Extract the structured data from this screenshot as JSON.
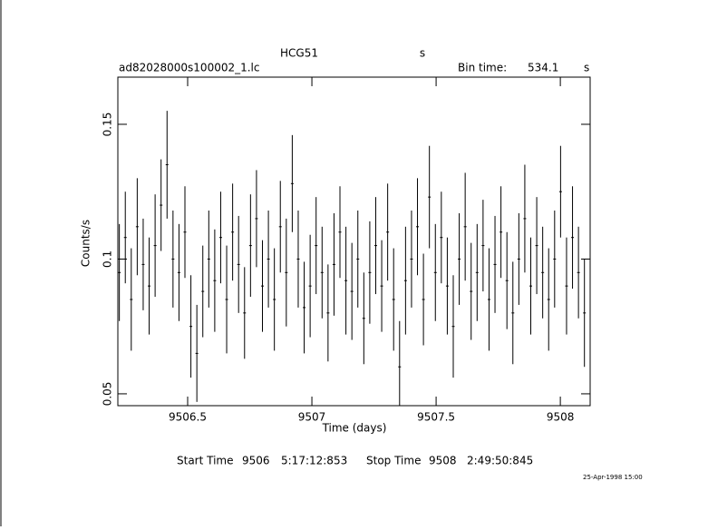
{
  "chart_data": {
    "type": "errorbar",
    "object": "HCG51",
    "object_unit": "s",
    "file": "ad82028000s100002_1.lc",
    "bin_time_label": "Bin time:",
    "bin_time": 534.1,
    "bin_time_unit": "s",
    "xlabel": "Time (days)",
    "ylabel": "Counts/s",
    "start_label": "Start Time",
    "start_day": "9506",
    "start_time": "5:17:12:853",
    "stop_label": "Stop Time",
    "stop_day": "9508",
    "stop_time": "2:49:50:845",
    "date_stamp": "25-Apr-1998 15:00",
    "color": "#000000",
    "xlim": [
      9506.219,
      9508.12
    ],
    "xticks": [
      9506.5,
      9507,
      9507.5,
      9508
    ],
    "ylim": [
      0.0456,
      0.1675
    ],
    "yticks": [
      0.05,
      0.1,
      0.15
    ],
    "x": [
      9506.225,
      9506.249,
      9506.273,
      9506.297,
      9506.321,
      9506.345,
      9506.369,
      9506.393,
      9506.417,
      9506.441,
      9506.465,
      9506.489,
      9506.513,
      9506.537,
      9506.561,
      9506.585,
      9506.609,
      9506.633,
      9506.657,
      9506.681,
      9506.705,
      9506.729,
      9506.753,
      9506.777,
      9506.801,
      9506.825,
      9506.849,
      9506.873,
      9506.897,
      9506.921,
      9506.945,
      9506.969,
      9506.993,
      9507.017,
      9507.041,
      9507.065,
      9507.089,
      9507.113,
      9507.137,
      9507.161,
      9507.185,
      9507.209,
      9507.233,
      9507.257,
      9507.281,
      9507.305,
      9507.329,
      9507.353,
      9507.377,
      9507.401,
      9507.425,
      9507.449,
      9507.473,
      9507.497,
      9507.521,
      9507.545,
      9507.569,
      9507.593,
      9507.617,
      9507.641,
      9507.665,
      9507.689,
      9507.713,
      9507.737,
      9507.761,
      9507.785,
      9507.809,
      9507.833,
      9507.857,
      9507.881,
      9507.905,
      9507.929,
      9507.953,
      9507.977,
      9508.001,
      9508.025,
      9508.049,
      9508.073,
      9508.097
    ],
    "values": [
      0.095,
      0.108,
      0.085,
      0.112,
      0.098,
      0.09,
      0.105,
      0.12,
      0.135,
      0.1,
      0.095,
      0.11,
      0.075,
      0.065,
      0.088,
      0.1,
      0.092,
      0.108,
      0.085,
      0.11,
      0.098,
      0.08,
      0.105,
      0.115,
      0.09,
      0.1,
      0.085,
      0.112,
      0.095,
      0.128,
      0.1,
      0.082,
      0.09,
      0.105,
      0.095,
      0.08,
      0.098,
      0.11,
      0.092,
      0.088,
      0.1,
      0.078,
      0.095,
      0.105,
      0.09,
      0.11,
      0.085,
      0.06,
      0.092,
      0.1,
      0.112,
      0.085,
      0.123,
      0.095,
      0.108,
      0.09,
      0.075,
      0.1,
      0.112,
      0.088,
      0.095,
      0.105,
      0.085,
      0.098,
      0.11,
      0.092,
      0.08,
      0.1,
      0.115,
      0.09,
      0.105,
      0.095,
      0.085,
      0.1,
      0.125,
      0.09,
      0.108,
      0.095,
      0.08
    ],
    "errors": [
      0.018,
      0.017,
      0.019,
      0.018,
      0.017,
      0.018,
      0.019,
      0.017,
      0.02,
      0.018,
      0.018,
      0.017,
      0.019,
      0.018,
      0.017,
      0.018,
      0.019,
      0.017,
      0.02,
      0.018,
      0.018,
      0.017,
      0.019,
      0.018,
      0.017,
      0.018,
      0.019,
      0.017,
      0.02,
      0.018,
      0.018,
      0.017,
      0.019,
      0.018,
      0.017,
      0.018,
      0.019,
      0.017,
      0.02,
      0.018,
      0.018,
      0.017,
      0.019,
      0.018,
      0.017,
      0.018,
      0.019,
      0.017,
      0.02,
      0.018,
      0.018,
      0.017,
      0.019,
      0.018,
      0.017,
      0.018,
      0.019,
      0.017,
      0.02,
      0.018,
      0.018,
      0.017,
      0.019,
      0.018,
      0.017,
      0.018,
      0.019,
      0.017,
      0.02,
      0.018,
      0.018,
      0.017,
      0.019,
      0.018,
      0.017,
      0.018,
      0.019,
      0.017,
      0.02
    ]
  }
}
